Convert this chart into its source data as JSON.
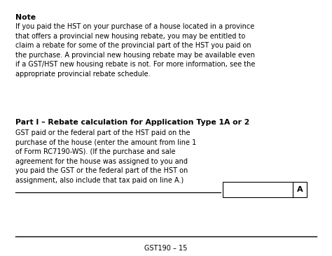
{
  "background_color": "#ffffff",
  "note_title": "Note",
  "note_body": "If you paid the HST on your purchase of a house located in a province\nthat offers a provincial new housing rebate, you may be entitled to\nclaim a rebate for some of the provincial part of the HST you paid on\nthe purchase. A provincial new housing rebate may be available even\nif a GST/HST new housing rebate is not. For more information, see the\nappropriate provincial rebate schedule.",
  "part_title": "Part I – Rebate calculation for Application Type 1A or 2",
  "part_body": "GST paid or the federal part of the HST paid on the\npurchase of the house (enter the amount from line 1\nof Form RC7190-WS). (If the purchase and sale\nagreement for the house was assigned to you and\nyou paid the GST or the federal part of the HST on\nassignment, also include that tax paid on line A.)",
  "line_label": "A",
  "footer_text": "GST190 – 15",
  "text_color": "#000000",
  "box_color": "#000000",
  "line_color": "#000000",
  "fig_width": 4.74,
  "fig_height": 3.66,
  "dpi": 100
}
